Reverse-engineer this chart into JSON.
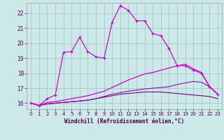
{
  "xlabel": "Windchill (Refroidissement éolien,°C)",
  "bg_color": "#cce8e8",
  "grid_color": "#aacccc",
  "line_color": "#cc00cc",
  "line_color2": "#990099",
  "line_color3": "#770077",
  "xlim": [
    -0.5,
    23.5
  ],
  "ylim": [
    15.6,
    22.7
  ],
  "xticks": [
    0,
    1,
    2,
    3,
    4,
    5,
    6,
    7,
    8,
    9,
    10,
    11,
    12,
    13,
    14,
    15,
    16,
    17,
    18,
    19,
    20,
    21,
    22,
    23
  ],
  "yticks": [
    16,
    17,
    18,
    19,
    20,
    21,
    22
  ],
  "line1_x": [
    0,
    1,
    2,
    3,
    4,
    5,
    6,
    7,
    8,
    9,
    10,
    11,
    12,
    13,
    14,
    15,
    16,
    17,
    18,
    19,
    20,
    21,
    22,
    23
  ],
  "line1_y": [
    16.0,
    15.85,
    16.3,
    16.55,
    19.4,
    19.45,
    20.4,
    19.45,
    19.1,
    19.0,
    21.4,
    22.5,
    22.2,
    21.5,
    21.5,
    20.65,
    20.5,
    19.65,
    18.5,
    18.5,
    18.2,
    18.0,
    17.1,
    16.6
  ],
  "line2_x": [
    0,
    1,
    2,
    3,
    4,
    5,
    6,
    7,
    8,
    9,
    10,
    11,
    12,
    13,
    14,
    15,
    16,
    17,
    18,
    19,
    20,
    21,
    22,
    23
  ],
  "line2_y": [
    16.0,
    15.85,
    16.05,
    16.1,
    16.2,
    16.3,
    16.4,
    16.5,
    16.65,
    16.8,
    17.05,
    17.3,
    17.55,
    17.75,
    17.95,
    18.05,
    18.2,
    18.35,
    18.5,
    18.6,
    18.3,
    18.05,
    17.1,
    16.6
  ],
  "line3_x": [
    0,
    1,
    2,
    3,
    4,
    5,
    6,
    7,
    8,
    9,
    10,
    11,
    12,
    13,
    14,
    15,
    16,
    17,
    18,
    19,
    20,
    21,
    22,
    23
  ],
  "line3_y": [
    16.0,
    15.85,
    15.95,
    16.0,
    16.05,
    16.1,
    16.15,
    16.2,
    16.3,
    16.4,
    16.5,
    16.6,
    16.65,
    16.7,
    16.75,
    16.75,
    16.75,
    16.7,
    16.65,
    16.6,
    16.55,
    16.5,
    16.45,
    16.3
  ],
  "line4_x": [
    0,
    1,
    2,
    3,
    4,
    5,
    6,
    7,
    8,
    9,
    10,
    11,
    12,
    13,
    14,
    15,
    16,
    17,
    18,
    19,
    20,
    21,
    22,
    23
  ],
  "line4_y": [
    16.0,
    15.85,
    15.95,
    16.0,
    16.05,
    16.1,
    16.15,
    16.2,
    16.3,
    16.45,
    16.6,
    16.7,
    16.8,
    16.88,
    16.95,
    17.0,
    17.05,
    17.1,
    17.25,
    17.35,
    17.45,
    17.4,
    17.1,
    16.6
  ]
}
